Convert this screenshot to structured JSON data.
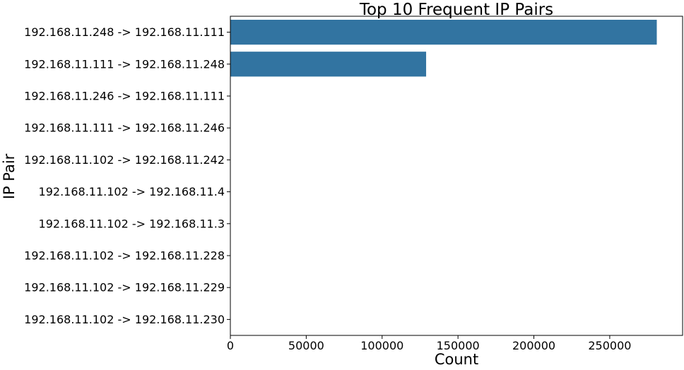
{
  "chart_data": {
    "type": "bar",
    "orientation": "horizontal",
    "title": "Top 10 Frequent IP Pairs",
    "xlabel": "Count",
    "ylabel": "IP Pair",
    "categories": [
      "192.168.11.248 -> 192.168.11.111",
      "192.168.11.111 -> 192.168.11.248",
      "192.168.11.246 -> 192.168.11.111",
      "192.168.11.111 -> 192.168.11.246",
      "192.168.11.102 -> 192.168.11.242",
      "192.168.11.102 -> 192.168.11.4",
      "192.168.11.102 -> 192.168.11.3",
      "192.168.11.102 -> 192.168.11.228",
      "192.168.11.102 -> 192.168.11.229",
      "192.168.11.102 -> 192.168.11.230"
    ],
    "values": [
      281000,
      129000,
      0,
      0,
      0,
      0,
      0,
      0,
      0,
      0
    ],
    "xlim": [
      0,
      298000
    ],
    "xticks": [
      0,
      50000,
      100000,
      150000,
      200000,
      250000
    ],
    "xtick_labels": [
      "0",
      "50000",
      "100000",
      "150000",
      "200000",
      "250000"
    ],
    "bar_color": "#3274a1",
    "grid": false,
    "legend": "none"
  }
}
